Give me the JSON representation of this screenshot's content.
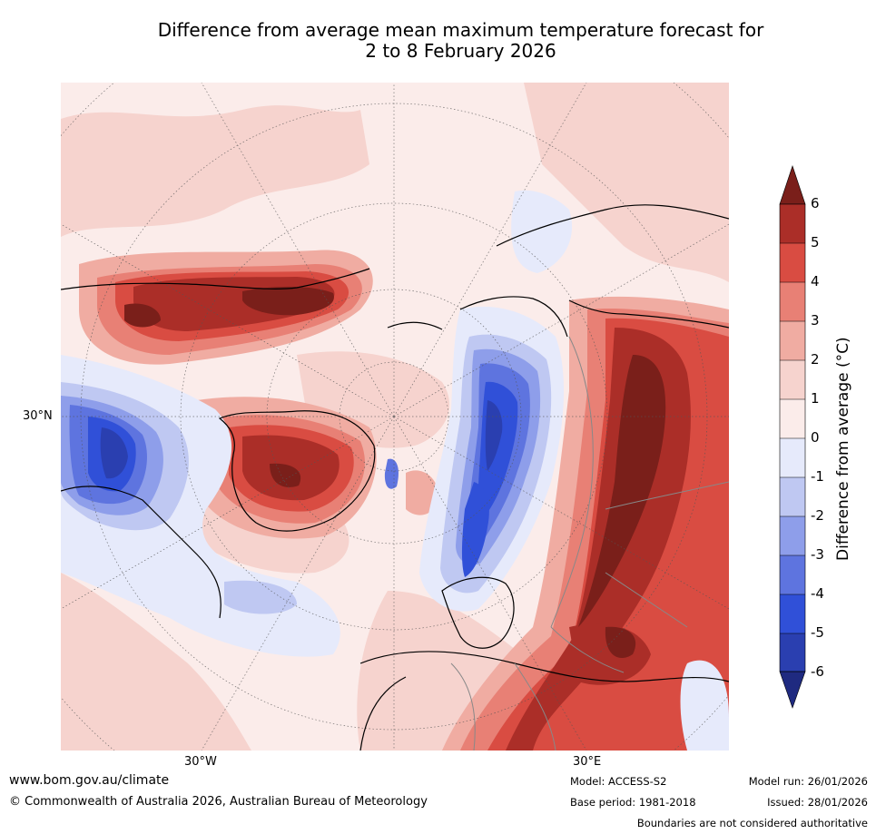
{
  "title": {
    "line1": "Difference from average mean maximum temperature forecast for",
    "line2": "2 to 8 February 2026"
  },
  "map": {
    "projection": "north-polar-stereographic",
    "lat_label": "30°N",
    "lon_labels": [
      "30°W",
      "30°E"
    ]
  },
  "colorbar": {
    "title": "Difference from average (°C)",
    "ticks": [
      "6",
      "5",
      "4",
      "3",
      "2",
      "1",
      "0",
      "-1",
      "-2",
      "-3",
      "-4",
      "-5",
      "-6"
    ],
    "colors": {
      "gt6": "#7a1f1a",
      "5_6": "#ab2e28",
      "4_5": "#d94c42",
      "3_4": "#e88075",
      "2_3": "#f0aca2",
      "1_2": "#f6d3ce",
      "0_1": "#fbecea",
      "m1_0": "#e6eafb",
      "m2_m1": "#bfc8f2",
      "m3_m2": "#8e9eea",
      "m4_m3": "#5e74df",
      "m5_m4": "#3050d8",
      "m6_m5": "#2a3fb0",
      "lt_m6": "#1f2a80"
    }
  },
  "footer": {
    "website": "www.bom.gov.au/climate",
    "copyright": "© Commonwealth of Australia 2026, Australian Bureau of Meteorology",
    "model": "Model: ACCESS-S2",
    "base_period": "Base period: 1981-2018",
    "model_run": "Model run: 26/01/2026",
    "issued": "Issued: 28/01/2026",
    "disclaimer": "Boundaries are not considered authoritative"
  }
}
